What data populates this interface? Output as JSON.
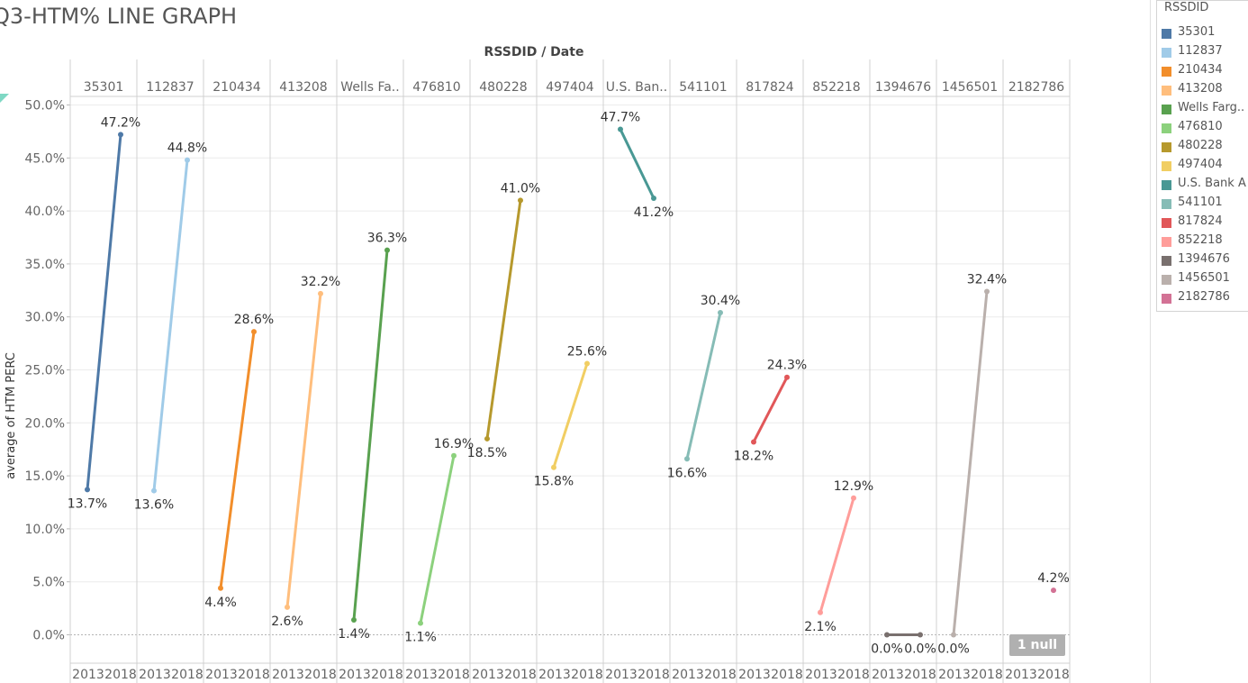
{
  "page": {
    "title": "Q3-HTM% LINE GRAPH"
  },
  "chart_data": {
    "type": "line",
    "header": "RSSDID / Date",
    "ylabel": "average of HTM PERC",
    "ylim": [
      -2.5,
      50.5
    ],
    "yticks": [
      0,
      5,
      10,
      15,
      20,
      25,
      30,
      35,
      40,
      45,
      50
    ],
    "ytick_labels": [
      "0.0%",
      "5.0%",
      "10.0%",
      "15.0%",
      "20.0%",
      "25.0%",
      "30.0%",
      "35.0%",
      "40.0%",
      "45.0%",
      "50.0%"
    ],
    "x_categories": [
      "2013",
      "2018"
    ],
    "grid": true,
    "legend_position": "right",
    "legend_title": "RSSDID",
    "null_badge": "1 null",
    "series": [
      {
        "name": "35301",
        "header": "35301",
        "color": "#4e79a7",
        "values": [
          13.7,
          47.2
        ],
        "labels": [
          "13.7%",
          "47.2%"
        ]
      },
      {
        "name": "112837",
        "header": "112837",
        "color": "#a0cbe8",
        "values": [
          13.6,
          44.8
        ],
        "labels": [
          "13.6%",
          "44.8%"
        ]
      },
      {
        "name": "210434",
        "header": "210434",
        "color": "#f28e2b",
        "values": [
          4.4,
          28.6
        ],
        "labels": [
          "4.4%",
          "28.6%"
        ]
      },
      {
        "name": "413208",
        "header": "413208",
        "color": "#ffbe7d",
        "values": [
          2.6,
          32.2
        ],
        "labels": [
          "2.6%",
          "32.2%"
        ]
      },
      {
        "name": "Wells Farg..",
        "header": "Wells Fa..",
        "color": "#59a14f",
        "values": [
          1.4,
          36.3
        ],
        "labels": [
          "1.4%",
          "36.3%"
        ]
      },
      {
        "name": "476810",
        "header": "476810",
        "color": "#8cd17d",
        "values": [
          1.1,
          16.9
        ],
        "labels": [
          "1.1%",
          "16.9%"
        ]
      },
      {
        "name": "480228",
        "header": "480228",
        "color": "#b6992d",
        "values": [
          18.5,
          41.0
        ],
        "labels": [
          "18.5%",
          "41.0%"
        ]
      },
      {
        "name": "497404",
        "header": "497404",
        "color": "#f1ce63",
        "values": [
          15.8,
          25.6
        ],
        "labels": [
          "15.8%",
          "25.6%"
        ]
      },
      {
        "name": "U.S. Bank A",
        "header": "U.S. Ban..",
        "color": "#499894",
        "values": [
          47.7,
          41.2
        ],
        "labels": [
          "47.7%",
          "41.2%"
        ]
      },
      {
        "name": "541101",
        "header": "541101",
        "color": "#86bcb6",
        "values": [
          16.6,
          30.4
        ],
        "labels": [
          "16.6%",
          "30.4%"
        ]
      },
      {
        "name": "817824",
        "header": "817824",
        "color": "#e15759",
        "values": [
          18.2,
          24.3
        ],
        "labels": [
          "18.2%",
          "24.3%"
        ]
      },
      {
        "name": "852218",
        "header": "852218",
        "color": "#ff9d9a",
        "values": [
          2.1,
          12.9
        ],
        "labels": [
          "2.1%",
          "12.9%"
        ]
      },
      {
        "name": "1394676",
        "header": "1394676",
        "color": "#79706e",
        "values": [
          0.0,
          0.0
        ],
        "labels": [
          "0.0%",
          "0.0%"
        ]
      },
      {
        "name": "1456501",
        "header": "1456501",
        "color": "#bab0ac",
        "values": [
          0.0,
          32.4
        ],
        "labels": [
          "0.0%",
          "32.4%"
        ]
      },
      {
        "name": "2182786",
        "header": "2182786",
        "color": "#d37295",
        "values": [
          null,
          4.2
        ],
        "labels": [
          "",
          "4.2%"
        ]
      }
    ]
  }
}
